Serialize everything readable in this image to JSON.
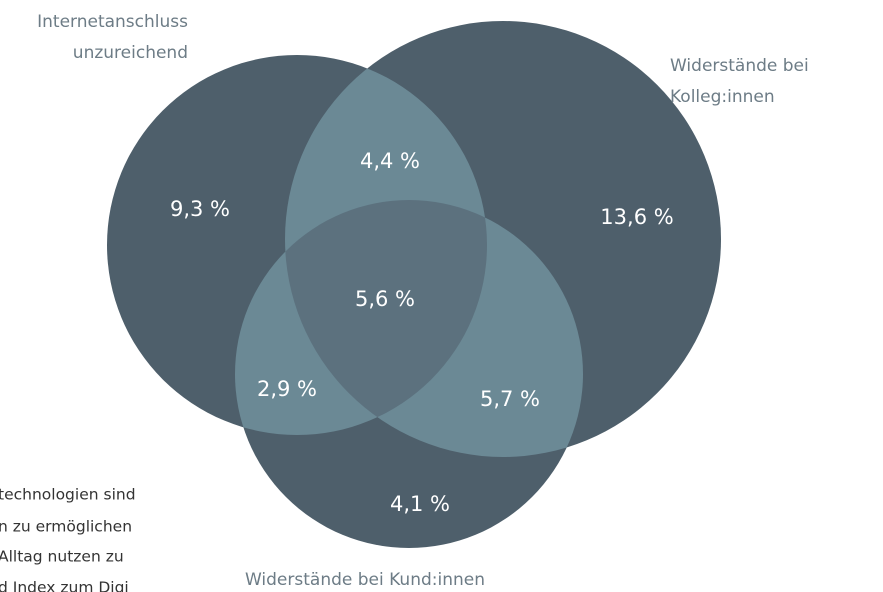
{
  "chart_data": {
    "type": "venn",
    "sets": [
      {
        "label": [
          "Internetanschluss",
          "unzureichend"
        ]
      },
      {
        "label": [
          "Widerstände bei",
          "Kolleg:innen"
        ]
      },
      {
        "label": [
          "Widerstände bei Kund:innen"
        ]
      }
    ],
    "regions": [
      {
        "sets": [
          0
        ],
        "value": 9.3
      },
      {
        "sets": [
          1
        ],
        "value": 13.6
      },
      {
        "sets": [
          2
        ],
        "value": 4.1
      },
      {
        "sets": [
          0,
          1
        ],
        "value": 4.4
      },
      {
        "sets": [
          0,
          2
        ],
        "value": 2.9
      },
      {
        "sets": [
          1,
          2
        ],
        "value": 5.7
      },
      {
        "sets": [
          0,
          1,
          2
        ],
        "value": 5.6
      }
    ],
    "value_labels": [
      "9,3 %",
      "13,6 %",
      "4,1 %",
      "4,4 %",
      "2,9 %",
      "5,7 %",
      "5,6 %"
    ],
    "colors": {
      "single": "#4e5f6b",
      "pair": "#6b8995",
      "triple": "#5c717e"
    },
    "background_text": [
      "technologien sind",
      "n zu ermöglichen",
      "Alltag nutzen zu",
      "d Index zum Digi"
    ]
  }
}
